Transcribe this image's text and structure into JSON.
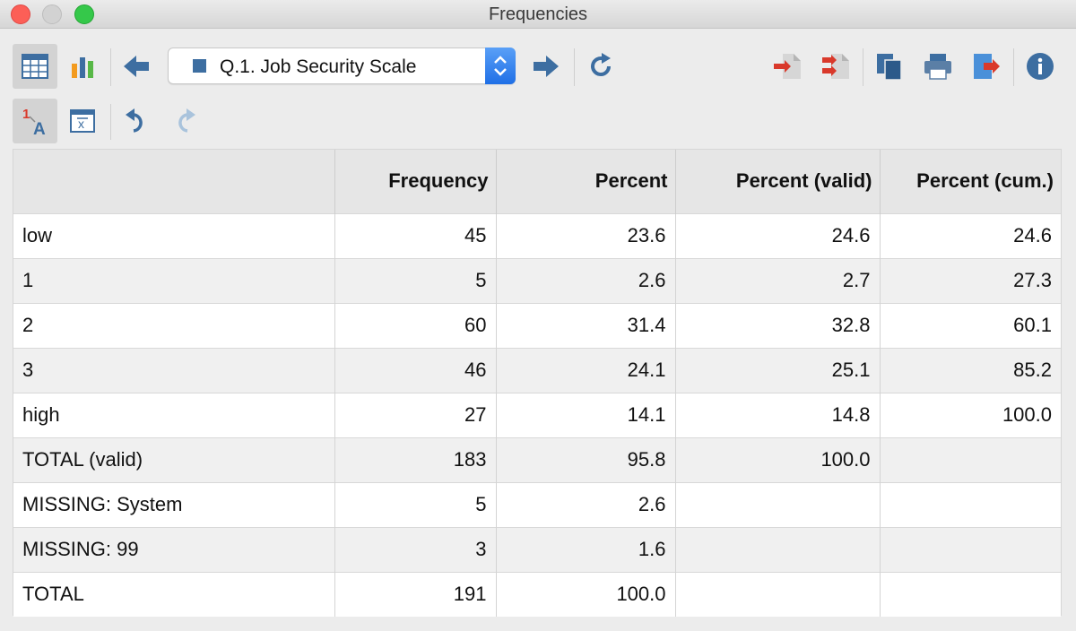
{
  "window": {
    "title": "Frequencies"
  },
  "variable_selector": {
    "selected": "Q.1. Job Security Scale"
  },
  "table": {
    "columns": [
      "",
      "Frequency",
      "Percent",
      "Percent (valid)",
      "Percent (cum.)"
    ],
    "rows": [
      [
        "low",
        "45",
        "23.6",
        "24.6",
        "24.6"
      ],
      [
        "1",
        "5",
        "2.6",
        "2.7",
        "27.3"
      ],
      [
        "2",
        "60",
        "31.4",
        "32.8",
        "60.1"
      ],
      [
        "3",
        "46",
        "24.1",
        "25.1",
        "85.2"
      ],
      [
        "high",
        "27",
        "14.1",
        "14.8",
        "100.0"
      ],
      [
        "TOTAL (valid)",
        "183",
        "95.8",
        "100.0",
        ""
      ],
      [
        "MISSING: System",
        "5",
        "2.6",
        "",
        ""
      ],
      [
        "MISSING: 99",
        "3",
        "1.6",
        "",
        ""
      ],
      [
        "TOTAL",
        "191",
        "100.0",
        "",
        ""
      ]
    ]
  },
  "colors": {
    "accent": "#3d6ea1",
    "export_red": "#d9392b"
  },
  "icons": {
    "toolbar": [
      "table-view-icon",
      "chart-view-icon",
      "previous-variable-icon",
      "next-variable-icon",
      "refresh-icon",
      "import-icon",
      "export-all-icon",
      "copy-icon",
      "print-icon",
      "export-icon",
      "info-icon",
      "value-labels-icon",
      "show-formula-icon",
      "undo-icon",
      "redo-icon"
    ]
  }
}
